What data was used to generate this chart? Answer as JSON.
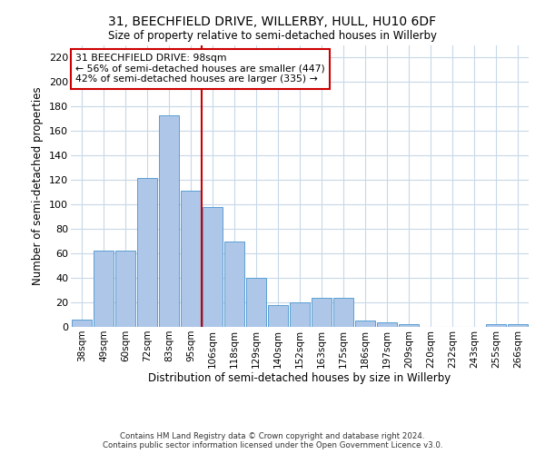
{
  "title": "31, BEECHFIELD DRIVE, WILLERBY, HULL, HU10 6DF",
  "subtitle": "Size of property relative to semi-detached houses in Willerby",
  "xlabel": "Distribution of semi-detached houses by size in Willerby",
  "ylabel": "Number of semi-detached properties",
  "categories": [
    "38sqm",
    "49sqm",
    "60sqm",
    "72sqm",
    "83sqm",
    "95sqm",
    "106sqm",
    "118sqm",
    "129sqm",
    "140sqm",
    "152sqm",
    "163sqm",
    "175sqm",
    "186sqm",
    "197sqm",
    "209sqm",
    "220sqm",
    "232sqm",
    "243sqm",
    "255sqm",
    "266sqm"
  ],
  "values": [
    6,
    62,
    62,
    122,
    173,
    111,
    98,
    70,
    40,
    18,
    20,
    24,
    24,
    5,
    4,
    2,
    0,
    0,
    0,
    2,
    2
  ],
  "bar_color": "#aec6e8",
  "bar_edge_color": "#5a9fd4",
  "vline_x_index": 5,
  "vline_color": "#cc0000",
  "annotation_text": "31 BEECHFIELD DRIVE: 98sqm\n← 56% of semi-detached houses are smaller (447)\n42% of semi-detached houses are larger (335) →",
  "annotation_box_color": "#ffffff",
  "annotation_box_edge": "#cc0000",
  "ylim": [
    0,
    230
  ],
  "yticks": [
    0,
    20,
    40,
    60,
    80,
    100,
    120,
    140,
    160,
    180,
    200,
    220
  ],
  "footnote": "Contains HM Land Registry data © Crown copyright and database right 2024.\nContains public sector information licensed under the Open Government Licence v3.0.",
  "background_color": "#ffffff",
  "grid_color": "#c8d8e8"
}
